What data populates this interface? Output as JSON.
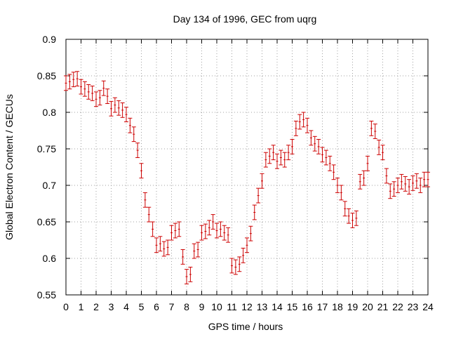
{
  "chart_data": {
    "type": "scatter",
    "title": "Day 134 of 1996, GEC from uqrg",
    "xlabel": "GPS time / hours",
    "ylabel": "Global Electron Content / GECUs",
    "xlim": [
      0,
      24
    ],
    "ylim": [
      0.55,
      0.9
    ],
    "xticks": [
      "0",
      "1",
      "2",
      "3",
      "4",
      "5",
      "6",
      "7",
      "8",
      "9",
      "10",
      "11",
      "12",
      "13",
      "14",
      "15",
      "16",
      "17",
      "18",
      "19",
      "20",
      "21",
      "22",
      "23",
      "24"
    ],
    "yticks": [
      "0.55",
      "0.6",
      "0.65",
      "0.7",
      "0.75",
      "0.8",
      "0.85",
      "0.9"
    ],
    "grid": true,
    "marker_color": "#cc0000",
    "series": [
      {
        "x": [
          0.0,
          0.25,
          0.5,
          0.75,
          1.0,
          1.25,
          1.5,
          1.75,
          2.0,
          2.25,
          2.5,
          2.75,
          3.0,
          3.25,
          3.5,
          3.75,
          4.0,
          4.25,
          4.5,
          4.75,
          5.0,
          5.25,
          5.5,
          5.75,
          6.0,
          6.25,
          6.5,
          6.75,
          7.0,
          7.25,
          7.5,
          7.75,
          8.0,
          8.25,
          8.5,
          8.75,
          9.0,
          9.25,
          9.5,
          9.75,
          10.0,
          10.25,
          10.5,
          10.75,
          11.0,
          11.25,
          11.5,
          11.75,
          12.0,
          12.25,
          12.5,
          12.75,
          13.0,
          13.25,
          13.5,
          13.75,
          14.0,
          14.25,
          14.5,
          14.75,
          15.0,
          15.25,
          15.5,
          15.75,
          16.0,
          16.25,
          16.5,
          16.75,
          17.0,
          17.25,
          17.5,
          17.75,
          18.0,
          18.25,
          18.5,
          18.75,
          19.0,
          19.25,
          19.5,
          19.75,
          20.0,
          20.25,
          20.5,
          20.75,
          21.0,
          21.25,
          21.5,
          21.75,
          22.0,
          22.25,
          22.5,
          22.75,
          23.0,
          23.25,
          23.5,
          23.75,
          24.0
        ],
        "y": [
          0.84,
          0.842,
          0.845,
          0.846,
          0.835,
          0.832,
          0.828,
          0.826,
          0.818,
          0.82,
          0.833,
          0.822,
          0.805,
          0.81,
          0.806,
          0.803,
          0.797,
          0.782,
          0.77,
          0.748,
          0.72,
          0.68,
          0.66,
          0.64,
          0.618,
          0.62,
          0.613,
          0.615,
          0.635,
          0.638,
          0.64,
          0.602,
          0.575,
          0.578,
          0.61,
          0.612,
          0.635,
          0.637,
          0.642,
          0.65,
          0.638,
          0.64,
          0.635,
          0.632,
          0.59,
          0.588,
          0.592,
          0.604,
          0.618,
          0.634,
          0.663,
          0.686,
          0.706,
          0.735,
          0.74,
          0.745,
          0.733,
          0.738,
          0.735,
          0.745,
          0.753,
          0.778,
          0.787,
          0.79,
          0.782,
          0.765,
          0.757,
          0.753,
          0.742,
          0.738,
          0.73,
          0.718,
          0.7,
          0.69,
          0.668,
          0.658,
          0.652,
          0.655,
          0.705,
          0.71,
          0.73,
          0.778,
          0.774,
          0.752,
          0.745,
          0.713,
          0.692,
          0.695,
          0.7,
          0.705,
          0.702,
          0.698,
          0.703,
          0.706,
          0.7,
          0.708,
          0.708
        ],
        "error": 0.01
      }
    ]
  }
}
